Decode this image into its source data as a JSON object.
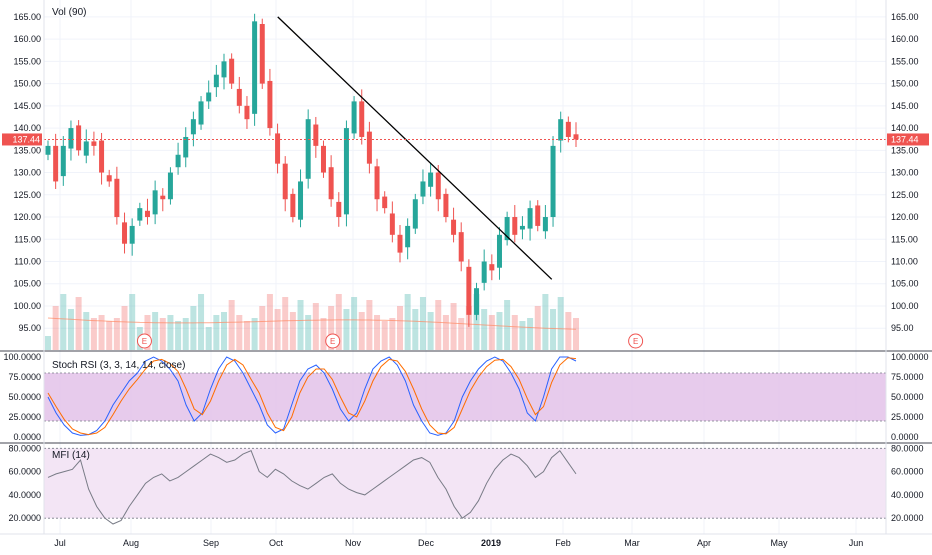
{
  "price_pane": {
    "indicator_label": "Vol (90)",
    "last_price_label": "137.44",
    "y_ticks": [
      "95.00",
      "100.00",
      "105.00",
      "110.00",
      "115.00",
      "120.00",
      "125.00",
      "130.00",
      "135.00",
      "140.00",
      "145.00",
      "150.00",
      "155.00",
      "160.00",
      "165.00"
    ],
    "earnings_marker": "E"
  },
  "stoch_pane": {
    "label": "Stoch RSI (3, 3, 14, 14, close)",
    "y_ticks": [
      "0.0000",
      "25.0000",
      "50.0000",
      "75.0000",
      "100.0000"
    ]
  },
  "mfi_pane": {
    "label": "MFI (14)",
    "y_ticks": [
      "20.0000",
      "40.0000",
      "60.0000",
      "80.0000"
    ]
  },
  "time_axis": {
    "labels": [
      "Jul",
      "Aug",
      "Sep",
      "Oct",
      "Nov",
      "Dec",
      "2019",
      "Feb",
      "Mar",
      "Apr",
      "May",
      "Jun"
    ]
  },
  "colors": {
    "up": "#26a69a",
    "down": "#ef5350",
    "stoch_band": "#e1bee7",
    "mfi_band": "#f3e5f5",
    "stoch_k": "#2962ff",
    "stoch_d": "#ff6d00",
    "mfi_line": "#787b86",
    "trendline": "#000000",
    "price_line": "#ef5350"
  },
  "chart_data": [
    {
      "type": "candlestick",
      "title": "",
      "ylim": [
        91,
        167
      ],
      "x_labels": [
        "Jul",
        "Aug",
        "Sep",
        "Oct",
        "Nov",
        "Dec",
        "2019",
        "Feb",
        "Mar",
        "Apr",
        "May",
        "Jun"
      ],
      "last_price": 137.44,
      "ohlc_path": [
        136,
        128,
        136,
        140,
        135,
        137,
        136,
        130,
        128,
        120,
        114,
        118,
        122,
        120,
        126,
        124,
        130,
        134,
        138,
        142,
        146,
        148,
        152,
        155,
        150,
        145,
        142,
        164,
        150,
        140,
        132,
        124,
        120,
        128,
        142,
        136,
        130,
        124,
        120,
        140,
        146,
        138,
        132,
        124,
        122,
        116,
        112,
        118,
        124,
        128,
        130,
        124,
        120,
        116,
        110,
        98,
        104,
        110,
        108,
        116,
        120,
        116,
        118,
        122,
        118,
        120,
        136,
        142,
        138,
        137.44
      ],
      "trendline": {
        "from": [
          0.298,
          165
        ],
        "to": [
          0.592,
          106
        ]
      },
      "earnings_markers_x": [
        0.155,
        0.357,
        0.682
      ],
      "volume_series": "bars beneath price, colored by candle direction"
    },
    {
      "type": "line",
      "name": "Stoch RSI (3, 3, 14, 14, close)",
      "ylim": [
        0,
        100
      ],
      "bands": [
        20,
        80
      ],
      "series": [
        {
          "name": "K",
          "values": [
            50,
            30,
            15,
            5,
            2,
            3,
            8,
            20,
            40,
            55,
            70,
            80,
            95,
            100,
            95,
            85,
            70,
            40,
            20,
            30,
            60,
            85,
            100,
            95,
            80,
            60,
            40,
            15,
            5,
            10,
            40,
            70,
            85,
            90,
            80,
            60,
            35,
            20,
            30,
            60,
            85,
            95,
            100,
            90,
            70,
            40,
            20,
            5,
            2,
            5,
            20,
            50,
            70,
            85,
            95,
            100,
            95,
            80,
            60,
            30,
            20,
            50,
            85,
            100,
            100,
            95
          ]
        },
        {
          "name": "D",
          "values": [
            55,
            38,
            22,
            10,
            5,
            3,
            5,
            12,
            28,
            45,
            60,
            72,
            85,
            95,
            97,
            92,
            82,
            60,
            35,
            28,
            45,
            70,
            90,
            97,
            90,
            72,
            55,
            30,
            12,
            8,
            25,
            55,
            75,
            85,
            85,
            72,
            50,
            30,
            25,
            45,
            70,
            88,
            97,
            95,
            82,
            60,
            35,
            15,
            5,
            4,
            12,
            35,
            58,
            75,
            88,
            96,
            97,
            88,
            72,
            48,
            28,
            38,
            68,
            90,
            99,
            98
          ]
        }
      ]
    },
    {
      "type": "line",
      "name": "MFI (14)",
      "ylim": [
        15,
        82
      ],
      "bands": [
        20,
        80
      ],
      "series": [
        {
          "name": "MFI",
          "values": [
            55,
            58,
            60,
            62,
            70,
            45,
            30,
            20,
            15,
            18,
            30,
            40,
            50,
            55,
            58,
            52,
            55,
            60,
            65,
            70,
            75,
            72,
            68,
            70,
            75,
            78,
            60,
            55,
            62,
            58,
            52,
            48,
            45,
            50,
            55,
            58,
            50,
            45,
            42,
            40,
            45,
            50,
            55,
            60,
            65,
            70,
            72,
            68,
            55,
            45,
            30,
            20,
            25,
            35,
            50,
            62,
            70,
            75,
            72,
            65,
            55,
            60,
            72,
            78,
            68,
            58
          ]
        }
      ]
    }
  ]
}
